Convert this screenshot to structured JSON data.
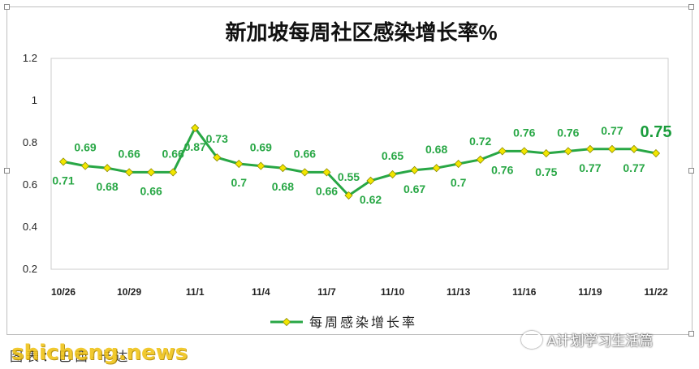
{
  "chart_data": {
    "type": "line",
    "title": "新加坡每周社区感染增长率%",
    "xlabel": "",
    "ylabel": "",
    "ylim": [
      0.2,
      1.2
    ],
    "yticks": [
      0.2,
      0.4,
      0.6,
      0.8,
      1,
      1.2
    ],
    "ytick_labels": [
      "0.2",
      "0.4",
      "0.6",
      "0.8",
      "1",
      "1.2"
    ],
    "x": [
      "10/26",
      "10/27",
      "10/28",
      "10/29",
      "10/30",
      "10/31",
      "11/1",
      "11/2",
      "11/3",
      "11/4",
      "11/5",
      "11/6",
      "11/7",
      "11/8",
      "11/9",
      "11/10",
      "11/11",
      "11/12",
      "11/13",
      "11/14",
      "11/15",
      "11/16",
      "11/17",
      "11/18",
      "11/19",
      "11/20",
      "11/21",
      "11/22"
    ],
    "xtick_labels": [
      "10/26",
      "10/29",
      "11/1",
      "11/4",
      "11/7",
      "11/10",
      "11/13",
      "11/16",
      "11/19",
      "11/22"
    ],
    "legend": "bottom",
    "grid": false,
    "series": [
      {
        "name": "每周感染增长率",
        "color": "#28a745",
        "marker_color": "#f2e600",
        "values": [
          0.71,
          0.69,
          0.68,
          0.66,
          0.66,
          0.66,
          0.87,
          0.73,
          0.7,
          0.69,
          0.68,
          0.66,
          0.66,
          0.55,
          0.62,
          0.65,
          0.67,
          0.68,
          0.7,
          0.72,
          0.76,
          0.76,
          0.75,
          0.76,
          0.77,
          0.77,
          0.77,
          0.75
        ],
        "data_labels": [
          "0.71",
          "0.69",
          "0.68",
          "0.66",
          "0.66",
          "0.66",
          "0.87",
          "0.73",
          "0.7",
          "0.69",
          "0.68",
          "0.66",
          "0.66",
          "0.55",
          "0.62",
          "0.65",
          "0.67",
          "0.68",
          "0.7",
          "0.72",
          "0.76",
          "0.76",
          "0.75",
          "0.76",
          "0.77",
          "0.77",
          "0.77",
          "0.75"
        ]
      }
    ]
  },
  "footer": {
    "source": "图表：巴西·卡达",
    "watermark": "shicheng.news",
    "brand": "A计划学习生活篇",
    "brand_icon": "wechat-icon"
  }
}
